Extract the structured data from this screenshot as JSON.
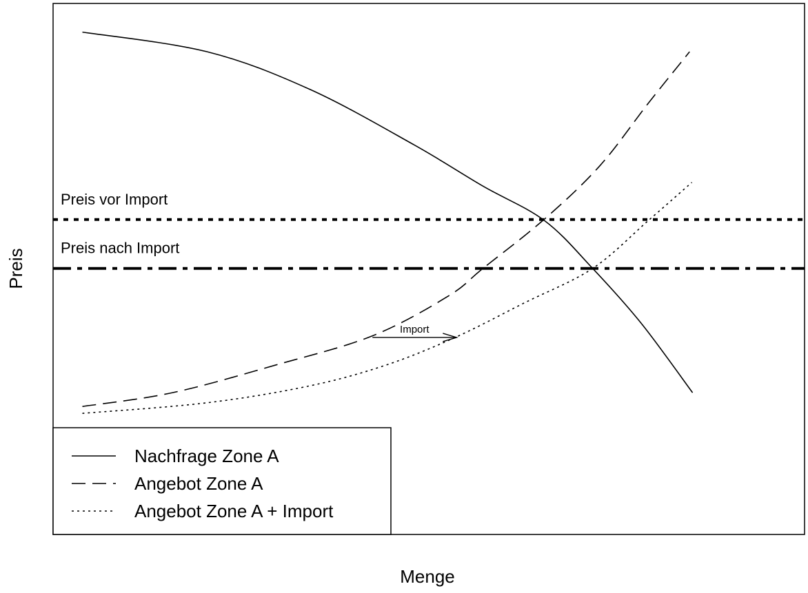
{
  "chart_data": {
    "type": "line",
    "x_label": "Menge",
    "y_label": "Preis",
    "xlim": [
      0,
      100
    ],
    "ylim": [
      0,
      100
    ],
    "series": [
      {
        "name": "Nachfrage Zone A",
        "color": "#000000",
        "style": "solid",
        "x": [
          3.9,
          20.5,
          34.2,
          48.0,
          57.2,
          65.4,
          71.8,
          78.3,
          85.1
        ],
        "values": [
          94.6,
          90.9,
          83.8,
          73.4,
          65.6,
          59.1,
          50.1,
          39.7,
          26.7
        ]
      },
      {
        "name": "Angebot Zone A",
        "color": "#000000",
        "style": "dashed",
        "x": [
          3.9,
          15.9,
          29.6,
          42.5,
          52.6,
          57.2,
          65.4,
          72.8,
          79.2,
          84.7
        ],
        "values": [
          24.1,
          26.7,
          31.9,
          37.4,
          44.9,
          50.1,
          59.4,
          69.5,
          81.2,
          90.9
        ]
      },
      {
        "name": "Angebot Zone A + Import",
        "color": "#000000",
        "style": "dotted",
        "x": [
          3.9,
          20.5,
          34.2,
          44.3,
          53.5,
          62.7,
          71.8,
          79.2,
          85.0
        ],
        "values": [
          22.8,
          24.8,
          28.0,
          31.9,
          37.1,
          43.6,
          50.1,
          59.1,
          66.3
        ]
      }
    ],
    "hlines": [
      {
        "label": "Preis vor Import",
        "value": 59.3,
        "style": "dotted"
      },
      {
        "label": "Preis nach Import",
        "value": 50.1,
        "style": "dashdot"
      }
    ],
    "annotation": {
      "text": "Import",
      "x": [
        42.5,
        53.7
      ],
      "y": 37.1
    },
    "legend": "bottom-left"
  }
}
